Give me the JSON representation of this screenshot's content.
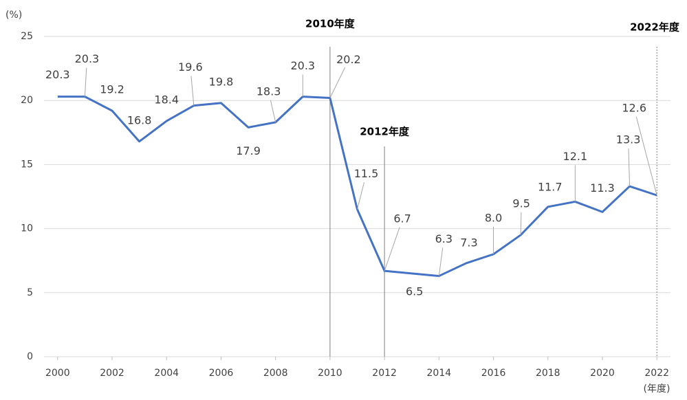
{
  "chart_data": {
    "type": "line",
    "y_unit_label": "(%)",
    "x_unit_label": "(年度)",
    "x": [
      2000,
      2001,
      2002,
      2003,
      2004,
      2005,
      2006,
      2007,
      2008,
      2009,
      2010,
      2011,
      2012,
      2013,
      2014,
      2015,
      2016,
      2017,
      2018,
      2019,
      2020,
      2021,
      2022
    ],
    "series": [
      {
        "color": "#4472c4",
        "values": [
          20.3,
          20.3,
          19.2,
          16.8,
          18.4,
          19.6,
          19.8,
          17.9,
          18.3,
          20.3,
          20.2,
          11.5,
          6.7,
          6.5,
          6.3,
          7.3,
          8.0,
          9.5,
          11.7,
          12.1,
          11.3,
          13.3,
          12.6
        ],
        "value_labels": [
          "20.3",
          "20.3",
          "19.2",
          "16.8",
          "18.4",
          "19.6",
          "19.8",
          "17.9",
          "18.3",
          "20.3",
          "20.2",
          "11.5",
          "6.7",
          "6.5",
          "6.3",
          "7.3",
          "8.0",
          "9.5",
          "11.7",
          "12.1",
          "11.3",
          "13.3",
          "12.6"
        ]
      }
    ],
    "xlim": [
      1999.5,
      2022.5
    ],
    "xticks": [
      2000,
      2002,
      2004,
      2006,
      2008,
      2010,
      2012,
      2014,
      2016,
      2018,
      2020,
      2022
    ],
    "ylim": [
      0,
      25
    ],
    "yticks": [
      0,
      5,
      10,
      15,
      20,
      25
    ],
    "grid": true,
    "annotations": [
      {
        "x": 2010,
        "label": "2010年度"
      },
      {
        "x": 2012,
        "label": "2012年度"
      },
      {
        "x": 2022,
        "label": "2022年度"
      }
    ]
  }
}
